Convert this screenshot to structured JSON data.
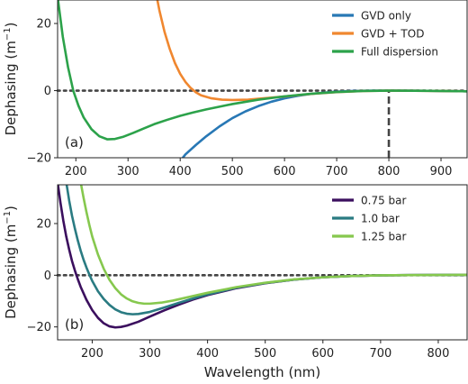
{
  "chart_data": [
    {
      "type": "line",
      "panel_label": "(a)",
      "ylabel": "Dephasing (m",
      "ylabel_sup": "−1",
      "ylabel_tail": ")",
      "xlabel": "",
      "xlim": [
        165,
        950
      ],
      "ylim": [
        -20,
        27
      ],
      "x_ticks": [
        200,
        300,
        400,
        500,
        600,
        700,
        800,
        900
      ],
      "x_tick_labels": [
        "200",
        "300",
        "400",
        "500",
        "600",
        "700",
        "800",
        "900"
      ],
      "y_ticks": [
        -20,
        0,
        20
      ],
      "y_tick_labels": [
        "−20",
        "0",
        "20"
      ],
      "legend_position": "top-right",
      "zero_line": "dotted",
      "marker_line": {
        "x": 800,
        "y_from": -20,
        "y_to": 0,
        "style": "dashed"
      },
      "series": [
        {
          "name": "GVD only",
          "color": "#2878b5",
          "points": [
            [
              395,
              -22
            ],
            [
              410,
              -19
            ],
            [
              430,
              -16.2
            ],
            [
              450,
              -13.6
            ],
            [
              475,
              -10.7
            ],
            [
              500,
              -8.2
            ],
            [
              525,
              -6.2
            ],
            [
              550,
              -4.6
            ],
            [
              575,
              -3.3
            ],
            [
              600,
              -2.3
            ],
            [
              625,
              -1.55
            ],
            [
              650,
              -1.0
            ],
            [
              675,
              -0.6
            ],
            [
              700,
              -0.32
            ],
            [
              725,
              -0.14
            ],
            [
              750,
              -0.04
            ],
            [
              775,
              -0.005
            ],
            [
              800,
              0
            ],
            [
              825,
              -0.01
            ],
            [
              850,
              -0.03
            ],
            [
              875,
              -0.06
            ],
            [
              900,
              -0.1
            ],
            [
              925,
              -0.15
            ],
            [
              950,
              -0.2
            ]
          ]
        },
        {
          "name": "GVD + TOD",
          "color": "#f0872f",
          "points": [
            [
              350,
              32
            ],
            [
              360,
              24
            ],
            [
              370,
              17.5
            ],
            [
              380,
              12.4
            ],
            [
              390,
              8.2
            ],
            [
              400,
              5.0
            ],
            [
              410,
              2.6
            ],
            [
              420,
              0.8
            ],
            [
              430,
              -0.5
            ],
            [
              440,
              -1.4
            ],
            [
              460,
              -2.3
            ],
            [
              480,
              -2.7
            ],
            [
              500,
              -2.8
            ],
            [
              530,
              -2.7
            ],
            [
              560,
              -2.3
            ],
            [
              600,
              -1.75
            ],
            [
              650,
              -1.0
            ],
            [
              700,
              -0.45
            ],
            [
              750,
              -0.12
            ],
            [
              800,
              0
            ],
            [
              850,
              -0.03
            ],
            [
              900,
              -0.1
            ],
            [
              950,
              -0.2
            ]
          ]
        },
        {
          "name": "Full dispersion",
          "color": "#2ca24a",
          "points": [
            [
              165,
              28
            ],
            [
              175,
              16
            ],
            [
              185,
              7
            ],
            [
              195,
              0
            ],
            [
              205,
              -4.5
            ],
            [
              215,
              -8
            ],
            [
              230,
              -11.5
            ],
            [
              245,
              -13.6
            ],
            [
              260,
              -14.5
            ],
            [
              275,
              -14.4
            ],
            [
              290,
              -13.8
            ],
            [
              310,
              -12.6
            ],
            [
              330,
              -11.3
            ],
            [
              350,
              -10.0
            ],
            [
              375,
              -8.7
            ],
            [
              400,
              -7.5
            ],
            [
              425,
              -6.5
            ],
            [
              450,
              -5.6
            ],
            [
              500,
              -4.0
            ],
            [
              550,
              -2.7
            ],
            [
              600,
              -1.7
            ],
            [
              650,
              -0.95
            ],
            [
              700,
              -0.42
            ],
            [
              750,
              -0.1
            ],
            [
              800,
              0
            ],
            [
              850,
              -0.03
            ],
            [
              900,
              -0.1
            ],
            [
              950,
              -0.2
            ]
          ]
        }
      ]
    },
    {
      "type": "line",
      "panel_label": "(b)",
      "ylabel": "Dephasing (m",
      "ylabel_sup": "−1",
      "ylabel_tail": ")",
      "xlabel": "Wavelength (nm)",
      "xlim": [
        140,
        850
      ],
      "ylim": [
        -25,
        35
      ],
      "x_ticks": [
        200,
        300,
        400,
        500,
        600,
        700,
        800
      ],
      "x_tick_labels": [
        "200",
        "300",
        "400",
        "500",
        "600",
        "700",
        "800"
      ],
      "y_ticks": [
        -20,
        0,
        20
      ],
      "y_tick_labels": [
        "−20",
        "0",
        "20"
      ],
      "legend_position": "top-right",
      "zero_line": "dotted",
      "series": [
        {
          "name": "0.75 bar",
          "color": "#3b0f5e",
          "points": [
            [
              140,
              36
            ],
            [
              145,
              28
            ],
            [
              150,
              21
            ],
            [
              155,
              15
            ],
            [
              160,
              10
            ],
            [
              165,
              5.5
            ],
            [
              170,
              1.8
            ],
            [
              175,
              -1.5
            ],
            [
              180,
              -4.5
            ],
            [
              190,
              -9.5
            ],
            [
              200,
              -13.5
            ],
            [
              210,
              -16.5
            ],
            [
              220,
              -18.6
            ],
            [
              230,
              -19.8
            ],
            [
              240,
              -20.2
            ],
            [
              250,
              -20.0
            ],
            [
              260,
              -19.5
            ],
            [
              280,
              -18.0
            ],
            [
              300,
              -16.0
            ],
            [
              325,
              -13.6
            ],
            [
              350,
              -11.4
            ],
            [
              375,
              -9.4
            ],
            [
              400,
              -7.7
            ],
            [
              450,
              -5.0
            ],
            [
              500,
              -3.1
            ],
            [
              550,
              -1.7
            ],
            [
              600,
              -0.8
            ],
            [
              650,
              -0.3
            ],
            [
              700,
              -0.05
            ],
            [
              750,
              0.05
            ],
            [
              800,
              0.1
            ],
            [
              850,
              0.15
            ]
          ]
        },
        {
          "name": "1.0 bar",
          "color": "#2a7b82",
          "points": [
            [
              155,
              36
            ],
            [
              160,
              29
            ],
            [
              165,
              23
            ],
            [
              170,
              18
            ],
            [
              175,
              13.5
            ],
            [
              180,
              9.5
            ],
            [
              185,
              6
            ],
            [
              190,
              3
            ],
            [
              195,
              0.3
            ],
            [
              200,
              -2.2
            ],
            [
              210,
              -6.2
            ],
            [
              220,
              -9.2
            ],
            [
              230,
              -11.5
            ],
            [
              240,
              -13.2
            ],
            [
              250,
              -14.3
            ],
            [
              260,
              -14.9
            ],
            [
              270,
              -15.1
            ],
            [
              280,
              -15.0
            ],
            [
              300,
              -14.2
            ],
            [
              325,
              -12.5
            ],
            [
              350,
              -10.7
            ],
            [
              375,
              -9.0
            ],
            [
              400,
              -7.4
            ],
            [
              450,
              -4.8
            ],
            [
              500,
              -3.0
            ],
            [
              550,
              -1.7
            ],
            [
              600,
              -0.8
            ],
            [
              650,
              -0.3
            ],
            [
              700,
              -0.05
            ],
            [
              750,
              0.05
            ],
            [
              800,
              0.1
            ],
            [
              850,
              0.15
            ]
          ]
        },
        {
          "name": "1.25 bar",
          "color": "#86c84e",
          "points": [
            [
              180,
              36
            ],
            [
              185,
              30
            ],
            [
              190,
              24.5
            ],
            [
              195,
              19.5
            ],
            [
              200,
              15
            ],
            [
              210,
              8
            ],
            [
              220,
              2.5
            ],
            [
              230,
              -1.8
            ],
            [
              240,
              -5
            ],
            [
              250,
              -7.4
            ],
            [
              260,
              -9
            ],
            [
              270,
              -10.1
            ],
            [
              280,
              -10.7
            ],
            [
              290,
              -11.0
            ],
            [
              300,
              -11.0
            ],
            [
              320,
              -10.6
            ],
            [
              340,
              -9.8
            ],
            [
              360,
              -8.8
            ],
            [
              380,
              -7.8
            ],
            [
              400,
              -6.8
            ],
            [
              450,
              -4.6
            ],
            [
              500,
              -2.9
            ],
            [
              550,
              -1.6
            ],
            [
              600,
              -0.8
            ],
            [
              650,
              -0.3
            ],
            [
              700,
              -0.05
            ],
            [
              750,
              0.05
            ],
            [
              800,
              0.1
            ],
            [
              850,
              0.15
            ]
          ]
        }
      ]
    }
  ]
}
